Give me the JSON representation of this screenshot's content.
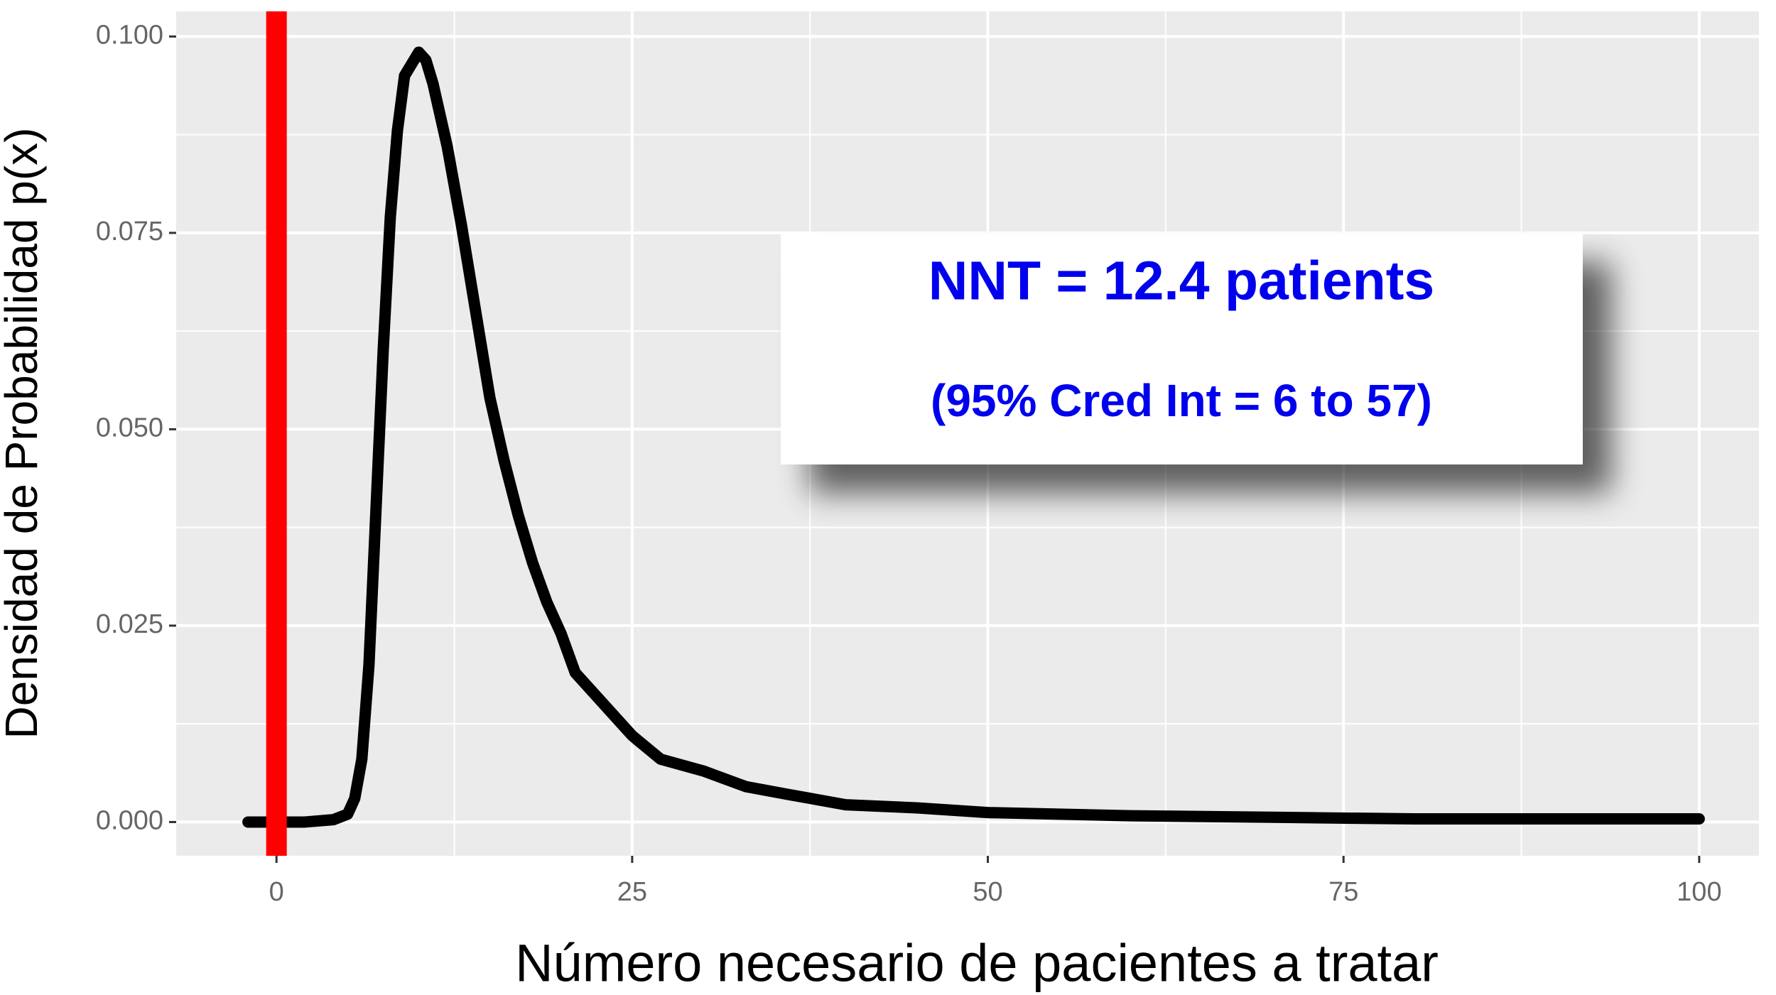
{
  "chart_data": {
    "type": "line",
    "x_label": "Número necesario de pacientes a tratar",
    "y_label": "Densidad de Probabilidad p(x)",
    "x": [
      -2,
      0,
      2,
      4,
      5,
      5.5,
      6,
      6.5,
      7,
      7.5,
      8,
      8.5,
      9,
      10,
      10.5,
      11,
      12,
      13,
      14,
      15,
      16,
      17,
      18,
      19,
      20,
      21,
      22,
      23,
      25,
      27,
      30,
      33,
      36,
      40,
      45,
      50,
      55,
      60,
      70,
      80,
      90,
      100
    ],
    "series": [
      {
        "color": "#000000",
        "values": [
          0,
          0,
          0,
          0.0003,
          0.001,
          0.003,
          0.008,
          0.02,
          0.04,
          0.06,
          0.077,
          0.088,
          0.095,
          0.098,
          0.097,
          0.094,
          0.086,
          0.076,
          0.065,
          0.054,
          0.046,
          0.039,
          0.033,
          0.028,
          0.024,
          0.019,
          0.017,
          0.015,
          0.011,
          0.008,
          0.0065,
          0.0045,
          0.0035,
          0.0022,
          0.0018,
          0.0012,
          0.001,
          0.0008,
          0.0006,
          0.0004,
          0.0004,
          0.0004
        ]
      }
    ],
    "xlim": [
      -7.05,
      104.2
    ],
    "ylim": [
      -0.0043,
      0.1032
    ],
    "xticks": [
      0,
      25,
      50,
      75,
      100
    ],
    "yticks": [
      {
        "value": 0,
        "label": "0.000"
      },
      {
        "value": 0.025,
        "label": "0.025"
      },
      {
        "value": 0.05,
        "label": "0.050"
      },
      {
        "value": 0.075,
        "label": "0.075"
      },
      {
        "value": 0.1,
        "label": "0.100"
      }
    ],
    "grid": true,
    "minor_grid": true,
    "vline": {
      "x": 0,
      "color": "#ff0000"
    },
    "annotations": [
      "NNT = 12.4 patients",
      "(95% Cred Int  = 6 to 57)"
    ]
  }
}
